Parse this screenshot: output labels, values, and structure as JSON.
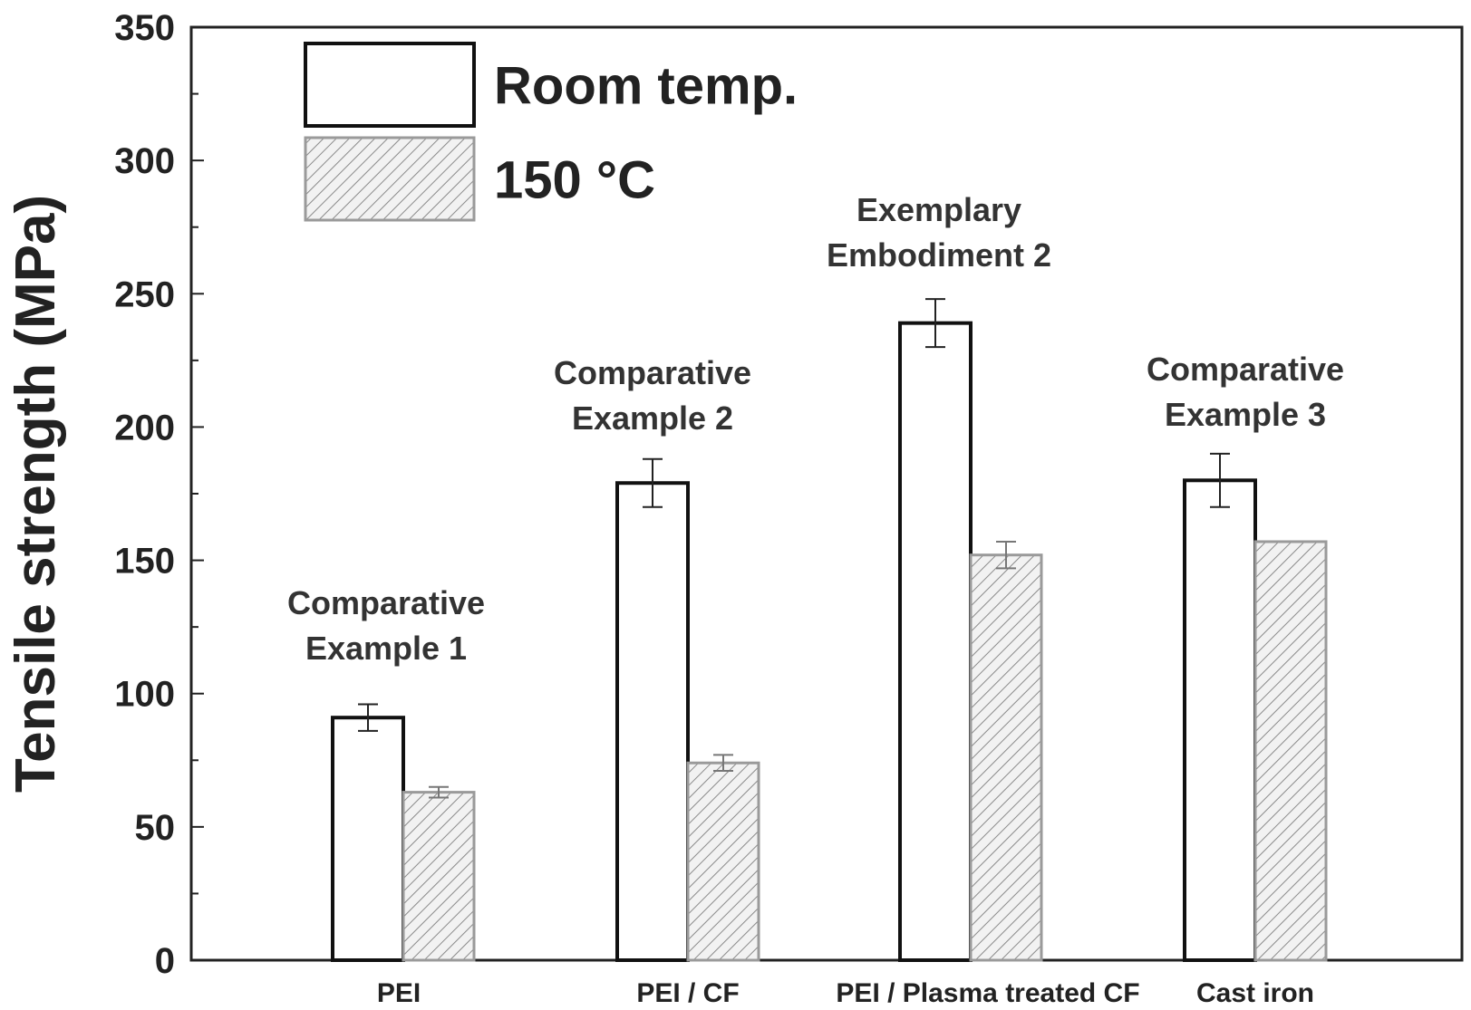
{
  "chart_data": {
    "type": "bar",
    "title": "",
    "xlabel": "",
    "ylabel": "Tensile strength (MPa)",
    "ylim": [
      0,
      350
    ],
    "yticks": [
      0,
      50,
      100,
      150,
      200,
      250,
      300,
      350
    ],
    "grid": false,
    "legend": "top-left",
    "categories": [
      "PEI",
      "PEI / CF",
      "PEI / Plasma treated CF",
      "Cast iron"
    ],
    "annotations": [
      [
        "Comparative",
        "Example 1"
      ],
      [
        "Comparative",
        "Example 2"
      ],
      [
        "Exemplary",
        "Embodiment 2"
      ],
      [
        "Comparative",
        "Example 3"
      ]
    ],
    "series": [
      {
        "name": "Room temp.",
        "values": [
          91,
          179,
          239,
          180
        ],
        "errors": [
          5,
          9,
          9,
          10
        ],
        "fill": "#ffffff",
        "stroke": "#111111"
      },
      {
        "name": "150 °C",
        "values": [
          63,
          74,
          152,
          157
        ],
        "errors": [
          2,
          3,
          5,
          0
        ],
        "fill": "hatched",
        "stroke": "#9a9a9a"
      }
    ]
  }
}
